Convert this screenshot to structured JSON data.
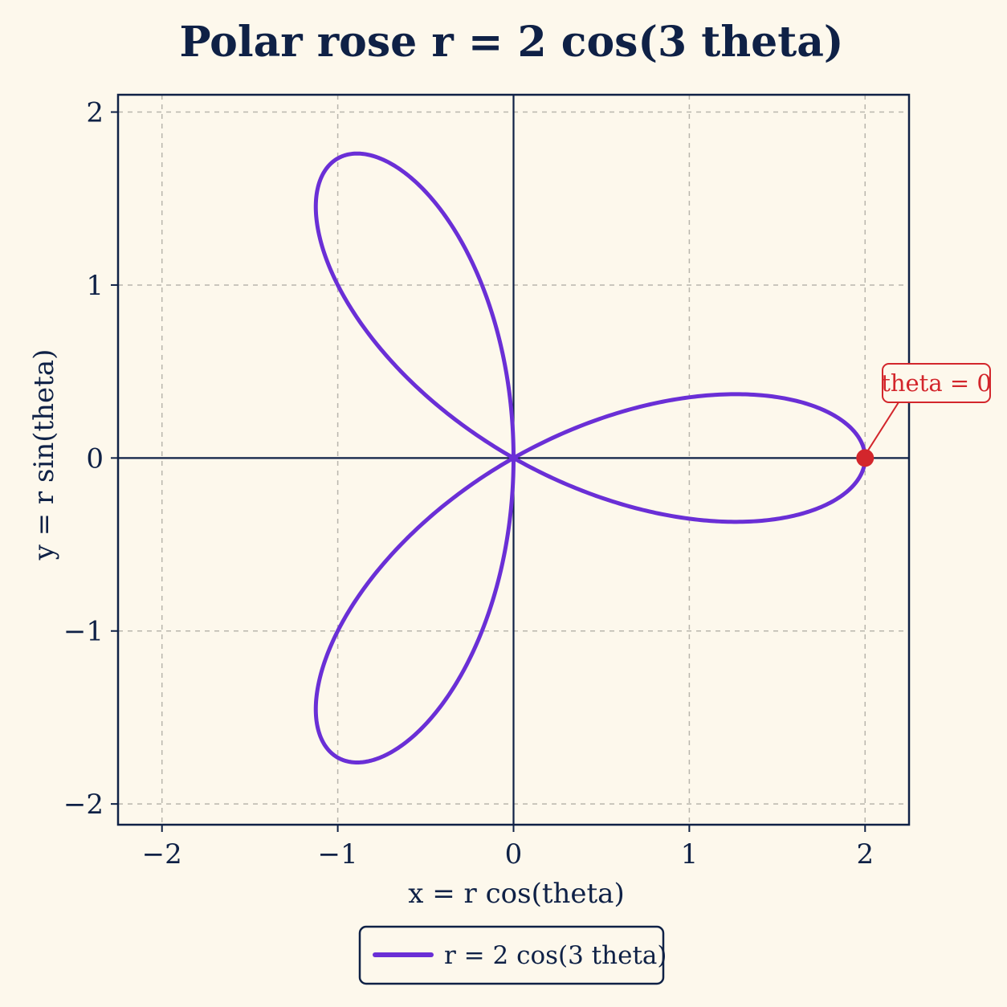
{
  "chart_data": {
    "type": "line",
    "title": "Polar rose r = 2 cos(3 theta)",
    "xlabel": "x = r cos(theta)",
    "ylabel": "y = r sin(theta)",
    "xlim": [
      -2.25,
      2.25
    ],
    "ylim": [
      -2.12,
      2.1
    ],
    "xticks": [
      -2,
      -1,
      0,
      1,
      2
    ],
    "yticks": [
      -2,
      -1,
      0,
      1,
      2
    ],
    "xtick_labels": [
      "−2",
      "−1",
      "0",
      "1",
      "2"
    ],
    "ytick_labels": [
      "−2",
      "−1",
      "0",
      "1",
      "2"
    ],
    "grid": true,
    "legend_position": "below",
    "series": [
      {
        "name": "r = 2 cos(3 theta)",
        "color": "#6a2fd6",
        "equation": {
          "a": 2,
          "k": 3,
          "theta_range": [
            0,
            3.14159
          ]
        }
      }
    ],
    "annotations": [
      {
        "text": "theta = 0",
        "x": 2,
        "y": 0,
        "color": "#d3262c"
      }
    ]
  },
  "colors": {
    "background": "#fdf8ec",
    "axes": "#0f2146",
    "grid": "#b9b6ad",
    "curve": "#6a2fd6",
    "marker": "#d3262c"
  }
}
